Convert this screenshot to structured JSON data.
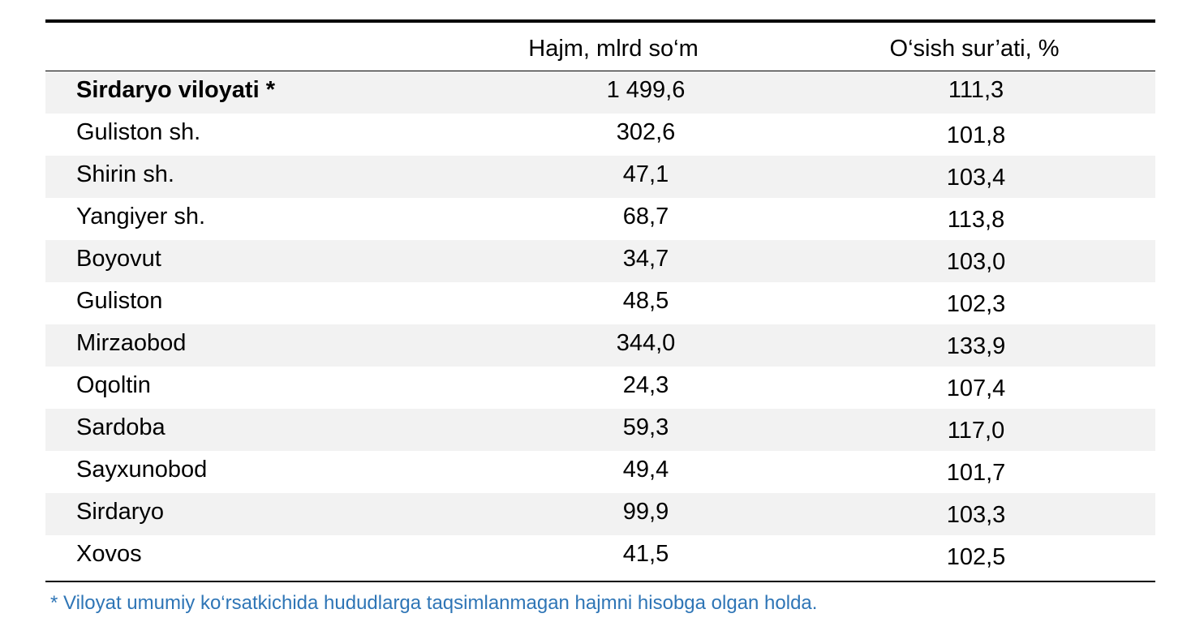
{
  "header": {
    "col1": "",
    "col2": "Hajm, mlrd so‘m",
    "col3": "O‘sish sur’ati, %"
  },
  "rows": [
    {
      "name": "Sirdaryo viloyati *",
      "hajm": "1 499,6",
      "osish": "111,3",
      "bold": true
    },
    {
      "name": "Guliston sh.",
      "hajm": "302,6",
      "osish": "101,8"
    },
    {
      "name": "Shirin sh.",
      "hajm": "47,1",
      "osish": "103,4"
    },
    {
      "name": "Yangiyer sh.",
      "hajm": "68,7",
      "osish": "113,8"
    },
    {
      "name": "Boyovut",
      "hajm": "34,7",
      "osish": "103,0"
    },
    {
      "name": "Guliston",
      "hajm": "48,5",
      "osish": "102,3"
    },
    {
      "name": "Mirzaobod",
      "hajm": "344,0",
      "osish": "133,9"
    },
    {
      "name": "Oqoltin",
      "hajm": "24,3",
      "osish": "107,4"
    },
    {
      "name": "Sardoba",
      "hajm": "59,3",
      "osish": "117,0"
    },
    {
      "name": "Sayxunobod",
      "hajm": "49,4",
      "osish": "101,7"
    },
    {
      "name": "Sirdaryo",
      "hajm": "99,9",
      "osish": "103,3"
    },
    {
      "name": "Xovos",
      "hajm": "41,5",
      "osish": "102,5"
    }
  ],
  "footnote": "* Viloyat umumiy ko‘rsatkichida hududlarga taqsimlanmagan hajmni hisobga olgan holda.",
  "colors": {
    "footnote": "#2e75b6",
    "shade": "#f2f2f2"
  }
}
